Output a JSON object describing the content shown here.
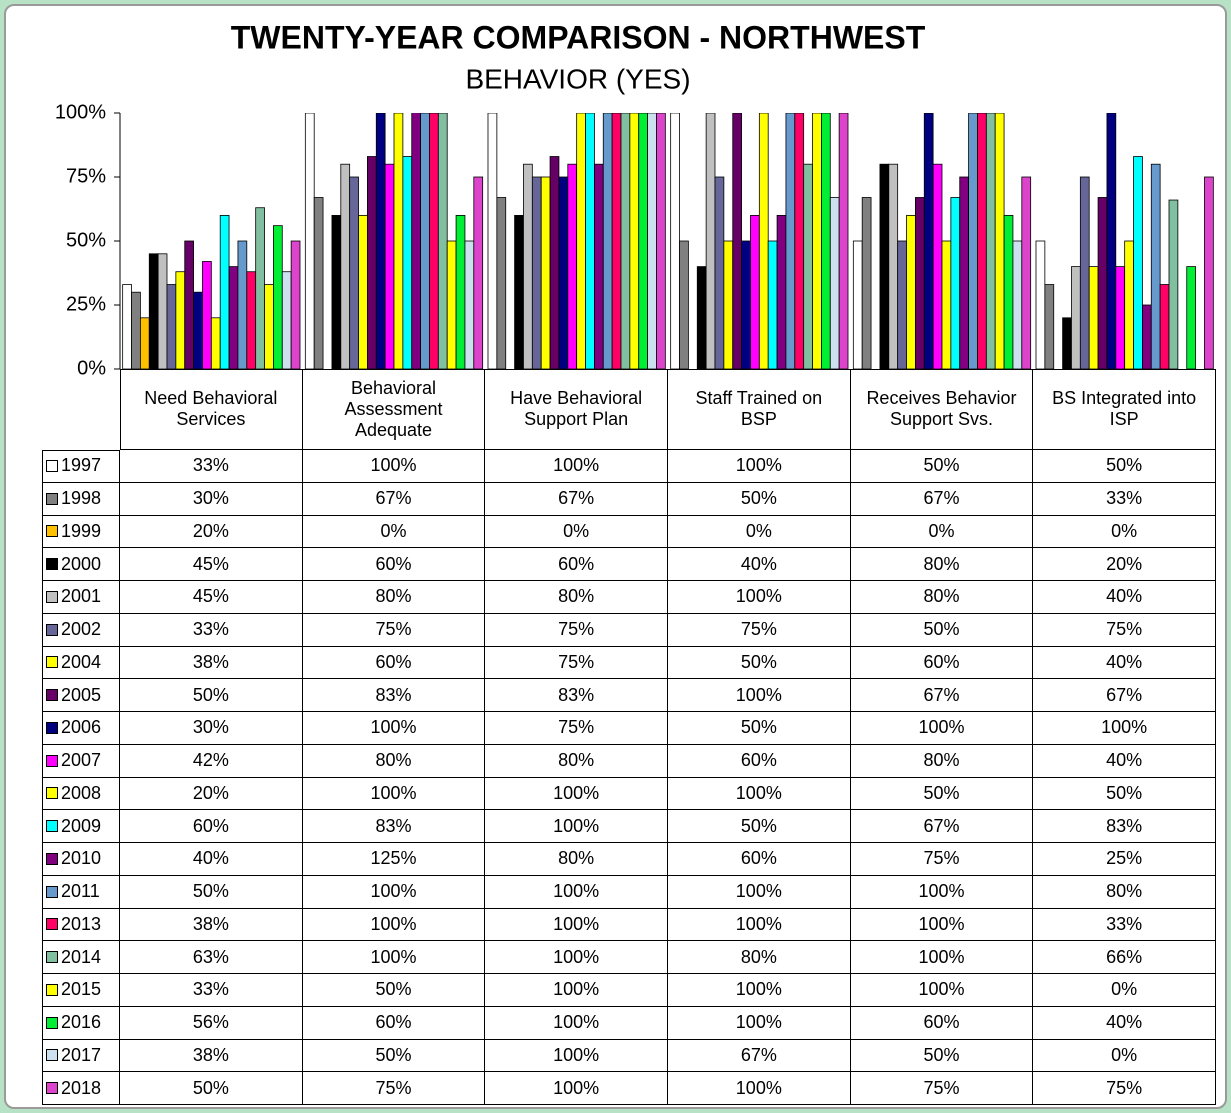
{
  "chart_data": {
    "type": "bar",
    "title": "TWENTY-YEAR COMPARISON - NORTHWEST",
    "subtitle": "BEHAVIOR (YES)",
    "categories": [
      "Need Behavioral Services",
      "Behavioral Assessment Adequate",
      "Have Behavioral Support Plan",
      "Staff Trained on BSP",
      "Receives Behavior Support Svs.",
      "BS Integrated into ISP"
    ],
    "ylim": [
      0,
      100
    ],
    "yticks": [
      {
        "value": 0,
        "label": "0%"
      },
      {
        "value": 25,
        "label": "25%"
      },
      {
        "value": 50,
        "label": "50%"
      },
      {
        "value": 75,
        "label": "75%"
      },
      {
        "value": 100,
        "label": "100%"
      }
    ],
    "grid": false,
    "series": [
      {
        "name": "1997",
        "color": "#ffffff",
        "values": [
          33,
          100,
          100,
          100,
          50,
          50
        ],
        "value_labels": [
          "33%",
          "100%",
          "100%",
          "100%",
          "50%",
          "50%"
        ]
      },
      {
        "name": "1998",
        "color": "#808080",
        "values": [
          30,
          67,
          67,
          50,
          67,
          33
        ],
        "value_labels": [
          "30%",
          "67%",
          "67%",
          "50%",
          "67%",
          "33%"
        ]
      },
      {
        "name": "1999",
        "color": "#ffc000",
        "values": [
          20,
          0,
          0,
          0,
          0,
          0
        ],
        "value_labels": [
          "20%",
          "0%",
          "0%",
          "0%",
          "0%",
          "0%"
        ]
      },
      {
        "name": "2000",
        "color": "#000000",
        "values": [
          45,
          60,
          60,
          40,
          80,
          20
        ],
        "value_labels": [
          "45%",
          "60%",
          "60%",
          "40%",
          "80%",
          "20%"
        ]
      },
      {
        "name": "2001",
        "color": "#c0c0c0",
        "values": [
          45,
          80,
          80,
          100,
          80,
          40
        ],
        "value_labels": [
          "45%",
          "80%",
          "80%",
          "100%",
          "80%",
          "40%"
        ]
      },
      {
        "name": "2002",
        "color": "#666699",
        "values": [
          33,
          75,
          75,
          75,
          50,
          75
        ],
        "value_labels": [
          "33%",
          "75%",
          "75%",
          "75%",
          "50%",
          "75%"
        ]
      },
      {
        "name": "2004",
        "color": "#ffff00",
        "values": [
          38,
          60,
          75,
          50,
          60,
          40
        ],
        "value_labels": [
          "38%",
          "60%",
          "75%",
          "50%",
          "60%",
          "40%"
        ]
      },
      {
        "name": "2005",
        "color": "#660066",
        "values": [
          50,
          83,
          83,
          100,
          67,
          67
        ],
        "value_labels": [
          "50%",
          "83%",
          "83%",
          "100%",
          "67%",
          "67%"
        ]
      },
      {
        "name": "2006",
        "color": "#000080",
        "values": [
          30,
          100,
          75,
          50,
          100,
          100
        ],
        "value_labels": [
          "30%",
          "100%",
          "75%",
          "50%",
          "100%",
          "100%"
        ]
      },
      {
        "name": "2007",
        "color": "#ff00ff",
        "values": [
          42,
          80,
          80,
          60,
          80,
          40
        ],
        "value_labels": [
          "42%",
          "80%",
          "80%",
          "60%",
          "80%",
          "40%"
        ]
      },
      {
        "name": "2008",
        "color": "#ffff00",
        "values": [
          20,
          100,
          100,
          100,
          50,
          50
        ],
        "value_labels": [
          "20%",
          "100%",
          "100%",
          "100%",
          "50%",
          "50%"
        ]
      },
      {
        "name": "2009",
        "color": "#00ffff",
        "values": [
          60,
          83,
          100,
          50,
          67,
          83
        ],
        "value_labels": [
          "60%",
          "83%",
          "100%",
          "50%",
          "67%",
          "83%"
        ]
      },
      {
        "name": "2010",
        "color": "#800080",
        "values": [
          40,
          125,
          80,
          60,
          75,
          25
        ],
        "value_labels": [
          "40%",
          "125%",
          "80%",
          "60%",
          "75%",
          "25%"
        ]
      },
      {
        "name": "2011",
        "color": "#6699cc",
        "values": [
          50,
          100,
          100,
          100,
          100,
          80
        ],
        "value_labels": [
          "50%",
          "100%",
          "100%",
          "100%",
          "100%",
          "80%"
        ]
      },
      {
        "name": "2013",
        "color": "#ff0066",
        "values": [
          38,
          100,
          100,
          100,
          100,
          33
        ],
        "value_labels": [
          "38%",
          "100%",
          "100%",
          "100%",
          "100%",
          "33%"
        ]
      },
      {
        "name": "2014",
        "color": "#80c0a0",
        "values": [
          63,
          100,
          100,
          80,
          100,
          66
        ],
        "value_labels": [
          "63%",
          "100%",
          "100%",
          "80%",
          "100%",
          "66%"
        ]
      },
      {
        "name": "2015",
        "color": "#ffff00",
        "values": [
          33,
          50,
          100,
          100,
          100,
          0
        ],
        "value_labels": [
          "33%",
          "50%",
          "100%",
          "100%",
          "100%",
          "0%"
        ]
      },
      {
        "name": "2016",
        "color": "#00ee33",
        "values": [
          56,
          60,
          100,
          100,
          60,
          40
        ],
        "value_labels": [
          "56%",
          "60%",
          "100%",
          "100%",
          "60%",
          "40%"
        ]
      },
      {
        "name": "2017",
        "color": "#cce0f0",
        "values": [
          38,
          50,
          100,
          67,
          50,
          0
        ],
        "value_labels": [
          "38%",
          "50%",
          "100%",
          "67%",
          "50%",
          "0%"
        ]
      },
      {
        "name": "2018",
        "color": "#dd44cc",
        "values": [
          50,
          75,
          100,
          100,
          75,
          75
        ],
        "value_labels": [
          "50%",
          "75%",
          "100%",
          "100%",
          "75%",
          "75%"
        ]
      }
    ]
  }
}
